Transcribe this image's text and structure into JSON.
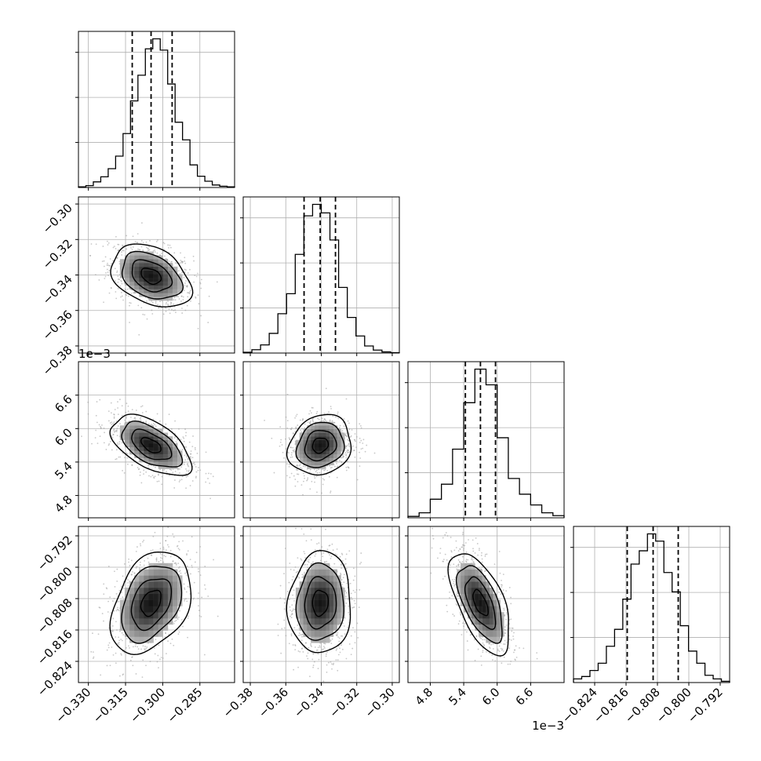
{
  "chart_data": {
    "type": "corner",
    "grid": true,
    "legend": "none",
    "parameters": [
      {
        "label": "",
        "range": [
          -0.334,
          -0.271
        ],
        "ticks": [
          -0.33,
          -0.315,
          -0.3,
          -0.285
        ],
        "tick_labels": [
          "−0.330",
          "−0.315",
          "−0.300",
          "−0.285"
        ],
        "offset_label": "",
        "quantiles": [
          -0.3123,
          -0.3047,
          -0.2962
        ],
        "histogram_edges": [
          -0.334,
          -0.271
        ],
        "histogram_counts": [
          1,
          3,
          9,
          17,
          30,
          50,
          86,
          138,
          179,
          221,
          237,
          219,
          165,
          104,
          76,
          36,
          18,
          10,
          4,
          2,
          1
        ]
      },
      {
        "label": "",
        "range": [
          -0.384,
          -0.296
        ],
        "ticks": [
          -0.38,
          -0.36,
          -0.34,
          -0.32,
          -0.3
        ],
        "tick_labels": [
          "−0.38",
          "−0.36",
          "−0.34",
          "−0.32",
          "−0.30"
        ],
        "offset_label": "",
        "quantiles": [
          -0.3497,
          -0.3406,
          -0.332
        ],
        "histogram_edges": [
          -0.384,
          -0.296
        ],
        "histogram_counts": [
          2,
          9,
          22,
          53,
          106,
          160,
          266,
          370,
          401,
          378,
          305,
          177,
          96,
          46,
          19,
          8,
          3,
          1
        ]
      },
      {
        "label": "",
        "range": [
          4.4,
          7.2
        ],
        "ticks": [
          4.8,
          5.4,
          6.0,
          6.6
        ],
        "tick_labels": [
          "4.8",
          "5.4",
          "6.0",
          "6.6"
        ],
        "offset_label": "1e−3",
        "quantiles": [
          5.43,
          5.7,
          5.97
        ],
        "histogram_edges": [
          4.4,
          7.2
        ],
        "histogram_counts": [
          2,
          7,
          26,
          47,
          96,
          161,
          208,
          186,
          112,
          55,
          33,
          18,
          7,
          3
        ]
      },
      {
        "label": "",
        "range": [
          -0.8294,
          -0.7896
        ],
        "ticks": [
          -0.824,
          -0.816,
          -0.808,
          -0.8,
          -0.792
        ],
        "tick_labels": [
          "−0.824",
          "−0.816",
          "−0.808",
          "−0.800",
          "−0.792"
        ],
        "offset_label": "",
        "quantiles": [
          -0.8157,
          -0.8091,
          -0.8027
        ],
        "histogram_edges": [
          -0.8294,
          -0.7896
        ],
        "histogram_counts": [
          3,
          5,
          10,
          16,
          30,
          44,
          69,
          98,
          109,
          123,
          117,
          91,
          75,
          47,
          26,
          16,
          6,
          3,
          1
        ]
      }
    ],
    "pair_correlations": [
      {
        "x_param": 0,
        "y_param": 1,
        "correlation": -0.35
      },
      {
        "x_param": 0,
        "y_param": 2,
        "correlation": -0.55
      },
      {
        "x_param": 1,
        "y_param": 2,
        "correlation": 0.15
      },
      {
        "x_param": 0,
        "y_param": 3,
        "correlation": 0.35
      },
      {
        "x_param": 1,
        "y_param": 3,
        "correlation": 0.05
      },
      {
        "x_param": 2,
        "y_param": 3,
        "correlation": -0.6
      }
    ]
  }
}
